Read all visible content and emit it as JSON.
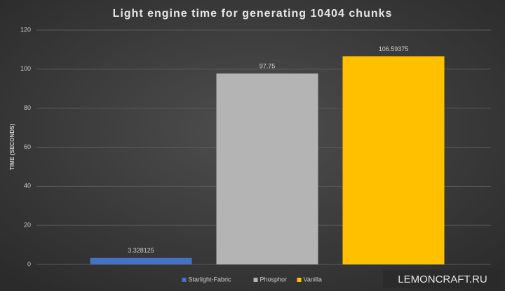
{
  "chart_data": {
    "type": "bar",
    "title": "Light engine time for generating 10404 chunks",
    "y_label": "TIME (SECONDS)",
    "categories": [
      null
    ],
    "series": [
      {
        "name": "Starlight-Fabric",
        "color": "#4472c4",
        "values": [
          3.328125
        ]
      },
      {
        "name": "Phosphor",
        "color": "#b4b4b4",
        "values": [
          97.75
        ]
      },
      {
        "name": "Vanilla",
        "color": "#ffc000",
        "values": [
          106.59375
        ]
      }
    ],
    "ylim": [
      0,
      120
    ],
    "yticks": [
      0,
      20,
      40,
      60,
      80,
      100,
      120
    ],
    "grid": true,
    "legend": "bottom",
    "watermark": "LEMONCRAFT.RU"
  }
}
